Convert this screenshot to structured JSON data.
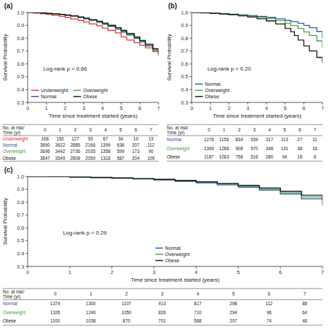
{
  "chart_data": [
    {
      "type": "step",
      "title": "(a)",
      "annotations": [
        "Log-rank p = 0.66"
      ],
      "x_label": "Time since treatment started (years)",
      "y_label": "Survival Probability",
      "xlim": [
        0,
        7
      ],
      "ylim": [
        0.3,
        1.0
      ],
      "xticks": [
        0,
        1,
        2,
        3,
        4,
        5,
        6,
        7
      ],
      "yticks": [
        0.3,
        0.4,
        0.5,
        0.6,
        0.7,
        0.8,
        0.9,
        {
          "value": 1.0,
          "label": "1.0"
        }
      ],
      "grid": false,
      "legend": "lower left",
      "series": [
        {
          "name": "Underweight",
          "color": "#e03030",
          "x": [
            0,
            0.3,
            0.7,
            1.0,
            1.3,
            1.7,
            2.0,
            2.3,
            2.7,
            3.0,
            3.3,
            3.7,
            4.0,
            4.3,
            4.7,
            5.0,
            5.3,
            5.7,
            6.0,
            6.3,
            6.7,
            7.0
          ],
          "values": [
            1.0,
            0.995,
            0.99,
            0.985,
            0.978,
            0.97,
            0.96,
            0.95,
            0.938,
            0.925,
            0.91,
            0.896,
            0.878,
            0.86,
            0.84,
            0.81,
            0.785,
            0.765,
            0.745,
            0.725,
            0.695,
            0.66
          ]
        },
        {
          "name": "Normal",
          "color": "#3050a0",
          "x": [
            0,
            0.3,
            0.7,
            1.0,
            1.3,
            1.7,
            2.0,
            2.3,
            2.7,
            3.0,
            3.3,
            3.7,
            4.0,
            4.3,
            4.7,
            5.0,
            5.3,
            5.7,
            6.0,
            6.3,
            6.7,
            7.0
          ],
          "values": [
            1.0,
            0.998,
            0.995,
            0.992,
            0.988,
            0.983,
            0.977,
            0.97,
            0.96,
            0.95,
            0.938,
            0.924,
            0.908,
            0.89,
            0.87,
            0.848,
            0.824,
            0.798,
            0.77,
            0.74,
            0.706,
            0.67
          ]
        },
        {
          "name": "Overweight",
          "color": "#40a040",
          "x": [
            0,
            0.3,
            0.7,
            1.0,
            1.3,
            1.7,
            2.0,
            2.3,
            2.7,
            3.0,
            3.3,
            3.7,
            4.0,
            4.3,
            4.7,
            5.0,
            5.3,
            5.7,
            6.0,
            6.3,
            6.7,
            7.0
          ],
          "values": [
            1.0,
            0.998,
            0.995,
            0.992,
            0.988,
            0.984,
            0.978,
            0.972,
            0.963,
            0.953,
            0.941,
            0.928,
            0.913,
            0.896,
            0.876,
            0.854,
            0.83,
            0.804,
            0.776,
            0.746,
            0.71,
            0.672
          ]
        },
        {
          "name": "Obese",
          "color": "#101010",
          "x": [
            0,
            0.3,
            0.7,
            1.0,
            1.3,
            1.7,
            2.0,
            2.3,
            2.7,
            3.0,
            3.3,
            3.7,
            4.0,
            4.3,
            4.7,
            5.0,
            5.3,
            5.7,
            6.0,
            6.3,
            6.7,
            7.0
          ],
          "values": [
            1.0,
            0.998,
            0.996,
            0.993,
            0.989,
            0.985,
            0.98,
            0.974,
            0.965,
            0.956,
            0.944,
            0.932,
            0.917,
            0.901,
            0.882,
            0.86,
            0.836,
            0.81,
            0.783,
            0.753,
            0.718,
            0.68
          ]
        }
      ],
      "risk_table": {
        "header": "No. at risk/\nTime (yr)",
        "columns": [
          "0",
          "1",
          "2",
          "3",
          "4",
          "5",
          "6",
          "7"
        ],
        "rows": [
          {
            "name": "Underweight",
            "color": "#e03030",
            "values": [
              168,
              150,
              127,
              93,
              67,
              34,
              19,
              13
            ]
          },
          {
            "name": "Normal",
            "color": "#3050a0",
            "values": [
              3890,
              3622,
              2885,
              2166,
              1399,
              636,
              207,
              112
            ]
          },
          {
            "name": "Overweight",
            "color": "#40a040",
            "values": [
              3696,
              3442,
              2736,
              2035,
              1358,
              599,
              173,
              90
            ]
          },
          {
            "name": "Obese",
            "color": "#101010",
            "values": [
              3847,
              3549,
              2808,
              2059,
              1318,
              587,
              204,
              109
            ]
          }
        ]
      }
    },
    {
      "type": "step",
      "title": "(b)",
      "annotations": [
        "Log-rank p = 0.20"
      ],
      "x_label": "Time since treatment started (years)",
      "y_label": "Survival Probability",
      "xlim": [
        0,
        7
      ],
      "ylim": [
        0.3,
        1.0
      ],
      "xticks": [
        0,
        1,
        2,
        3,
        4,
        5,
        6,
        7
      ],
      "yticks": [
        0.3,
        0.4,
        0.5,
        0.6,
        0.7,
        0.8,
        0.9,
        {
          "value": 1.0,
          "label": "1.0"
        }
      ],
      "grid": false,
      "legend": "lower left",
      "series": [
        {
          "name": "Normal",
          "color": "#3050a0",
          "x": [
            0,
            0.5,
            1.0,
            1.5,
            2.0,
            2.5,
            3.0,
            3.5,
            4.0,
            4.5,
            5.0,
            5.3,
            5.7,
            6.0,
            6.3,
            6.7,
            7.0
          ],
          "values": [
            1.0,
            0.998,
            0.995,
            0.991,
            0.987,
            0.982,
            0.976,
            0.969,
            0.961,
            0.951,
            0.938,
            0.928,
            0.916,
            0.9,
            0.882,
            0.852,
            0.8
          ]
        },
        {
          "name": "Overweight",
          "color": "#40a040",
          "x": [
            0,
            0.5,
            1.0,
            1.5,
            2.0,
            2.5,
            3.0,
            3.5,
            4.0,
            4.5,
            5.0,
            5.3,
            5.7,
            6.0,
            6.3,
            6.7,
            7.0
          ],
          "values": [
            1.0,
            0.998,
            0.994,
            0.99,
            0.985,
            0.979,
            0.972,
            0.963,
            0.952,
            0.937,
            0.916,
            0.898,
            0.875,
            0.849,
            0.82,
            0.778,
            0.72
          ]
        },
        {
          "name": "Obese",
          "color": "#101010",
          "x": [
            0,
            0.5,
            1.0,
            1.5,
            2.0,
            2.5,
            3.0,
            3.5,
            4.0,
            4.5,
            5.0,
            5.3,
            5.5,
            5.7,
            6.0,
            6.3,
            6.7,
            7.0
          ],
          "values": [
            1.0,
            0.997,
            0.993,
            0.988,
            0.982,
            0.974,
            0.964,
            0.951,
            0.934,
            0.91,
            0.875,
            0.85,
            0.82,
            0.785,
            0.74,
            0.7,
            0.65,
            0.61
          ]
        }
      ],
      "risk_table": {
        "header": "No. at risk/\nTime (yr)",
        "columns": [
          "0",
          "1",
          "2",
          "3",
          "4",
          "5",
          "6",
          "7"
        ],
        "rows": [
          {
            "name": "Normal",
            "color": "#3050a0",
            "values": [
              1276,
              1156,
              834,
              539,
              317,
              113,
              27,
              11
            ]
          },
          {
            "name": "Overweight",
            "color": "#40a040",
            "values": [
              1369,
              1286,
              908,
              570,
              348,
              141,
              38,
              16
            ]
          },
          {
            "name": "Obese",
            "color": "#101010",
            "values": [
              1187,
              1063,
              756,
              516,
              280,
              94,
              16,
              6
            ]
          }
        ]
      }
    },
    {
      "type": "step",
      "title": "(c)",
      "annotations": [
        "Log-rank p = 0.29"
      ],
      "x_label": "Time since treatment started (years)",
      "y_label": "Survival Probability",
      "xlim": [
        0,
        7
      ],
      "ylim": [
        0.3,
        1.0
      ],
      "xticks": [
        0,
        1,
        2,
        3,
        4,
        5,
        6,
        7
      ],
      "yticks": [
        0.3,
        0.4,
        0.5,
        0.6,
        0.7,
        0.8,
        0.9,
        {
          "value": 1.0,
          "label": "1.0"
        }
      ],
      "grid": false,
      "legend": "lower center",
      "series": [
        {
          "name": "Normal",
          "color": "#3050a0",
          "x": [
            0,
            0.5,
            1.0,
            1.5,
            2.0,
            2.5,
            3.0,
            3.5,
            4.0,
            4.5,
            5.0,
            5.5,
            6.0,
            6.5,
            7.0
          ],
          "values": [
            1.0,
            0.998,
            0.995,
            0.991,
            0.986,
            0.98,
            0.972,
            0.962,
            0.95,
            0.935,
            0.916,
            0.893,
            0.864,
            0.826,
            0.775
          ]
        },
        {
          "name": "Overweight",
          "color": "#40a040",
          "x": [
            0,
            0.5,
            1.0,
            1.5,
            2.0,
            2.5,
            3.0,
            3.5,
            4.0,
            4.5,
            5.0,
            5.5,
            6.0,
            6.5,
            7.0
          ],
          "values": [
            1.0,
            0.998,
            0.995,
            0.992,
            0.988,
            0.983,
            0.976,
            0.967,
            0.956,
            0.942,
            0.924,
            0.902,
            0.875,
            0.841,
            0.795
          ]
        },
        {
          "name": "Obese",
          "color": "#101010",
          "x": [
            0,
            0.5,
            1.0,
            1.5,
            2.0,
            2.5,
            3.0,
            3.5,
            4.0,
            4.5,
            5.0,
            5.5,
            6.0,
            6.5,
            7.0
          ],
          "values": [
            1.0,
            0.998,
            0.995,
            0.992,
            0.988,
            0.983,
            0.977,
            0.969,
            0.959,
            0.946,
            0.93,
            0.91,
            0.885,
            0.854,
            0.815
          ]
        }
      ],
      "risk_table": {
        "header": "No. at risk/\nTime (yr)",
        "columns": [
          "0",
          "1",
          "2",
          "3",
          "4",
          "5",
          "6",
          "7"
        ],
        "rows": [
          {
            "name": "Normal",
            "color": "#3050a0",
            "values": [
              1374,
              1300,
              1107,
              913,
              817,
              298,
              112,
              88
            ]
          },
          {
            "name": "Overweight",
            "color": "#40a040",
            "values": [
              1326,
              1240,
              1050,
              826,
              710,
              294,
              96,
              64
            ]
          },
          {
            "name": "Obese",
            "color": "#101010",
            "values": [
              1100,
              1038,
              870,
              701,
              568,
              207,
              74,
              46
            ]
          }
        ]
      }
    }
  ]
}
